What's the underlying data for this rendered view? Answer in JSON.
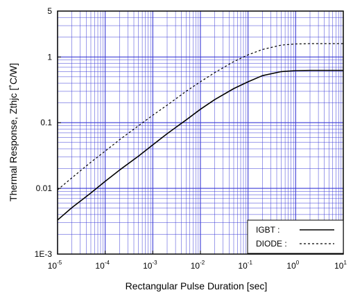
{
  "chart_data": {
    "type": "line",
    "title": "",
    "xlabel": "Rectangular Pulse Duration [sec]",
    "ylabel": "Thermal Response, Zthjc [˚C/W]",
    "x_scale": "log",
    "y_scale": "log",
    "xlim": [
      1e-05,
      10
    ],
    "ylim": [
      0.001,
      5
    ],
    "grid": true,
    "grid_color": "#3a3ad6",
    "legend_position": "bottom-right",
    "x_ticks": [
      {
        "value": 1e-05,
        "base": "10",
        "exp": "-5"
      },
      {
        "value": 0.0001,
        "base": "10",
        "exp": "-4"
      },
      {
        "value": 0.001,
        "base": "10",
        "exp": "-3"
      },
      {
        "value": 0.01,
        "base": "10",
        "exp": "-2"
      },
      {
        "value": 0.1,
        "base": "10",
        "exp": "-1"
      },
      {
        "value": 1,
        "base": "10",
        "exp": "0"
      },
      {
        "value": 10,
        "base": "10",
        "exp": "1"
      }
    ],
    "y_ticks": [
      {
        "value": 0.001,
        "label": "1E-3"
      },
      {
        "value": 0.01,
        "label": "0.01"
      },
      {
        "value": 0.1,
        "label": "0.1"
      },
      {
        "value": 1,
        "label": "1"
      },
      {
        "value": 5,
        "label": "5"
      }
    ],
    "series": [
      {
        "name": "IGBT",
        "legend_label": "IGBT    :",
        "line_style": "solid",
        "color": "#000000",
        "x": [
          1e-05,
          2e-05,
          5e-05,
          0.0001,
          0.0002,
          0.0005,
          0.001,
          0.002,
          0.005,
          0.01,
          0.02,
          0.05,
          0.1,
          0.2,
          0.5,
          1,
          2,
          5,
          10
        ],
        "y": [
          0.0033,
          0.0051,
          0.0085,
          0.0128,
          0.019,
          0.031,
          0.046,
          0.068,
          0.11,
          0.16,
          0.225,
          0.33,
          0.42,
          0.52,
          0.6,
          0.62,
          0.625,
          0.625,
          0.625
        ]
      },
      {
        "name": "DIODE",
        "legend_label": "DIODE :",
        "line_style": "dashed",
        "color": "#000000",
        "x": [
          1e-05,
          2e-05,
          5e-05,
          0.0001,
          0.0002,
          0.0005,
          0.001,
          0.002,
          0.005,
          0.01,
          0.02,
          0.05,
          0.1,
          0.2,
          0.5,
          1,
          2,
          5,
          10
        ],
        "y": [
          0.0095,
          0.0145,
          0.025,
          0.037,
          0.055,
          0.09,
          0.13,
          0.185,
          0.3,
          0.42,
          0.58,
          0.85,
          1.08,
          1.3,
          1.52,
          1.58,
          1.6,
          1.6,
          1.6
        ]
      }
    ]
  }
}
